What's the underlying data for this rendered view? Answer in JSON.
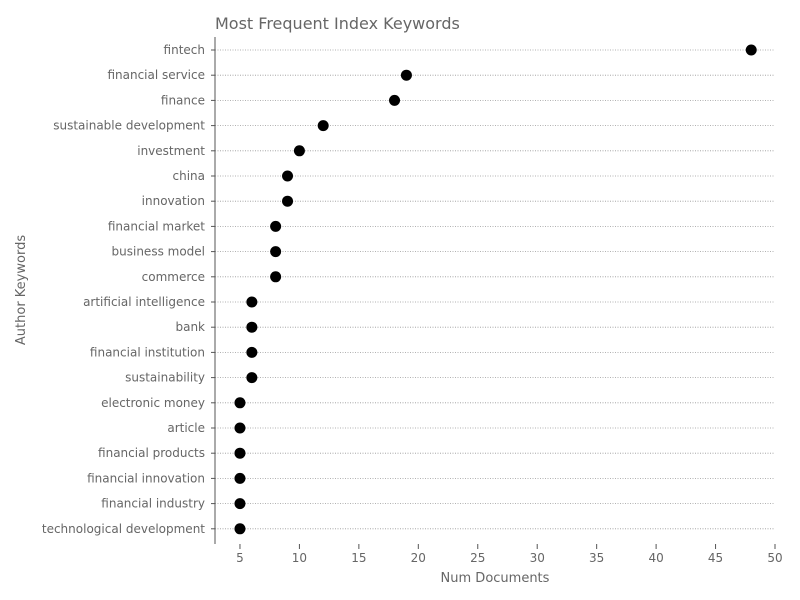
{
  "chart_data": {
    "type": "scatter",
    "title": "Most Frequent Index Keywords",
    "xlabel": "Num Documents",
    "ylabel": "Author Keywords",
    "xlim": [
      2.9,
      50
    ],
    "xticks": [
      5,
      10,
      15,
      20,
      25,
      30,
      35,
      40,
      45,
      50
    ],
    "grid": "horizontal dotted",
    "marker_color": "#000000",
    "categories": [
      "fintech",
      "financial service",
      "finance",
      "sustainable development",
      "investment",
      "china",
      "innovation",
      "financial market",
      "business model",
      "commerce",
      "artificial intelligence",
      "bank",
      "financial institution",
      "sustainability",
      "electronic money",
      "article",
      "financial products",
      "financial innovation",
      "financial industry",
      "technological development"
    ],
    "values": [
      48,
      19,
      18,
      12,
      10,
      9,
      9,
      8,
      8,
      8,
      6,
      6,
      6,
      6,
      5,
      5,
      5,
      5,
      5,
      5
    ]
  }
}
